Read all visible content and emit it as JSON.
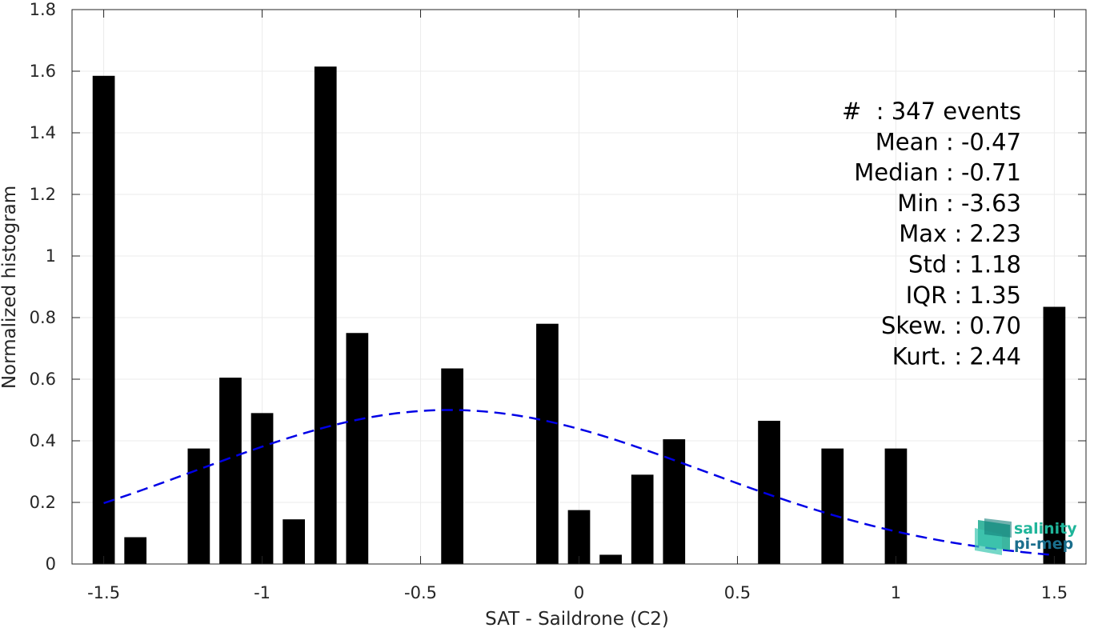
{
  "chart_data": {
    "type": "bar",
    "xlabel": "SAT - Saildrone (C2)",
    "ylabel": "Normalized histogram",
    "xlim": [
      -1.6,
      1.6
    ],
    "ylim": [
      0,
      1.8
    ],
    "xticks": [
      -1.5,
      -1,
      -0.5,
      0,
      0.5,
      1,
      1.5
    ],
    "xtick_labels": [
      "-1.5",
      "-1",
      "-0.5",
      "0",
      "0.5",
      "1",
      "1.5"
    ],
    "yticks": [
      0,
      0.2,
      0.4,
      0.6,
      0.8,
      1,
      1.2,
      1.4,
      1.6,
      1.8
    ],
    "ytick_labels": [
      "0",
      "0.2",
      "0.4",
      "0.6",
      "0.8",
      "1",
      "1.2",
      "1.4",
      "1.6",
      "1.8"
    ],
    "grid": true,
    "bar_width": 0.07,
    "bar_color": "#000000",
    "bars": [
      {
        "x": -1.5,
        "y": 1.585
      },
      {
        "x": -1.4,
        "y": 0.087
      },
      {
        "x": -1.2,
        "y": 0.375
      },
      {
        "x": -1.1,
        "y": 0.605
      },
      {
        "x": -1.0,
        "y": 0.49
      },
      {
        "x": -0.9,
        "y": 0.145
      },
      {
        "x": -0.8,
        "y": 1.615
      },
      {
        "x": -0.7,
        "y": 0.75
      },
      {
        "x": -0.4,
        "y": 0.635
      },
      {
        "x": -0.1,
        "y": 0.78
      },
      {
        "x": 0.0,
        "y": 0.175
      },
      {
        "x": 0.1,
        "y": 0.03
      },
      {
        "x": 0.2,
        "y": 0.29
      },
      {
        "x": 0.3,
        "y": 0.405
      },
      {
        "x": 0.6,
        "y": 0.465
      },
      {
        "x": 0.8,
        "y": 0.375
      },
      {
        "x": 1.0,
        "y": 0.375
      },
      {
        "x": 1.5,
        "y": 0.835
      }
    ],
    "fit_curve": {
      "style": "dashed",
      "color": "#0000e6",
      "mean": -0.41,
      "std": 0.8,
      "peak": 0.5,
      "x_range": [
        -1.5,
        1.5
      ]
    },
    "stats_lines": [
      "#  : 347 events",
      "Mean : -0.47",
      "Median : -0.71",
      "Min : -3.63",
      "Max : 2.23",
      "Std : 1.18",
      "IQR : 1.35",
      "Skew. : 0.70",
      "Kurt. : 2.44"
    ]
  },
  "logo": {
    "line1": "salinity",
    "line2": "pi-mep",
    "color1": "#1fb59a",
    "color2": "#1a6e8c"
  }
}
